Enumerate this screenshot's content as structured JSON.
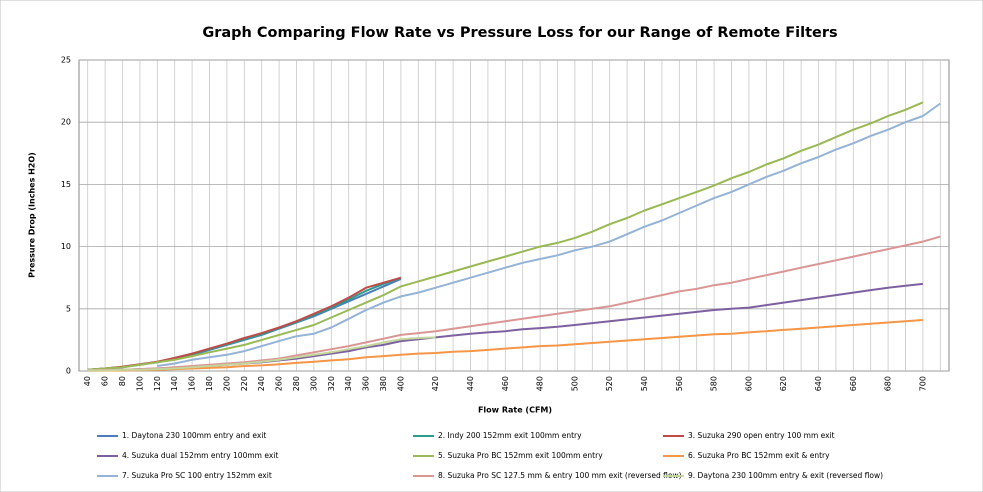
{
  "chart_data": {
    "type": "line",
    "title": "Graph Comparing Flow Rate vs Pressure Loss for our Range of Remote Filters",
    "x_label": "Flow Rate (CFM)",
    "y_label": "Pressure Drop (Inches H2O)",
    "categories": [
      "40",
      "60",
      "80",
      "100",
      "120",
      "140",
      "160",
      "180",
      "200",
      "220",
      "240",
      "260",
      "280",
      "300",
      "320",
      "340",
      "360",
      "380",
      "400",
      null,
      "420",
      null,
      "440",
      null,
      "460",
      null,
      "480",
      null,
      "500",
      null,
      "520",
      null,
      "540",
      null,
      "560",
      null,
      "580",
      null,
      "600",
      null,
      "620",
      null,
      "640",
      null,
      "660",
      null,
      "680",
      null,
      "700",
      null
    ],
    "ylim": [
      0,
      25
    ],
    "yticks": [
      0,
      5,
      10,
      15,
      20,
      25
    ],
    "grid": true,
    "legend": "bottom",
    "series": [
      {
        "name": "1. Daytona 230 100mm entry and exit",
        "color": "#4a7ebb",
        "values": [
          0.1,
          0.2,
          0.3,
          0.5,
          0.7,
          1.0,
          1.3,
          1.7,
          2.1,
          2.5,
          2.9,
          3.4,
          3.9,
          4.4,
          5.0,
          5.6,
          6.2,
          6.8,
          7.4,
          null,
          null,
          null,
          null,
          null,
          null,
          null,
          null,
          null,
          null,
          null,
          null,
          null,
          null,
          null,
          null,
          null,
          null,
          null,
          null,
          null,
          null,
          null,
          null,
          null,
          null,
          null,
          null,
          null,
          null,
          null
        ]
      },
      {
        "name": "2. Indy 200 152mm exit 100mm entry",
        "color": "#2c9c8c",
        "values": [
          0.1,
          0.2,
          0.32,
          0.52,
          0.72,
          1.02,
          1.35,
          1.75,
          2.15,
          2.55,
          2.95,
          3.45,
          3.95,
          4.5,
          5.1,
          5.75,
          6.45,
          7.0,
          7.5,
          null,
          null,
          null,
          null,
          null,
          null,
          null,
          null,
          null,
          null,
          null,
          null,
          null,
          null,
          null,
          null,
          null,
          null,
          null,
          null,
          null,
          null,
          null,
          null,
          null,
          null,
          null,
          null,
          null,
          null,
          null
        ]
      },
      {
        "name": "3. Suzuka 290 open entry 100 mm exit",
        "color": "#be4b48",
        "values": [
          0.1,
          0.2,
          0.35,
          0.55,
          0.75,
          1.05,
          1.4,
          1.8,
          2.2,
          2.65,
          3.05,
          3.5,
          4.0,
          4.6,
          5.2,
          5.9,
          6.7,
          7.1,
          7.5,
          null,
          null,
          null,
          null,
          null,
          null,
          null,
          null,
          null,
          null,
          null,
          null,
          null,
          null,
          null,
          null,
          null,
          null,
          null,
          null,
          null,
          null,
          null,
          null,
          null,
          null,
          null,
          null,
          null,
          null,
          null
        ]
      },
      {
        "name": "4. Suzuka dual 152mm entry 100mm exit",
        "color": "#7d60a0",
        "values": [
          0.05,
          0.1,
          0.1,
          0.15,
          0.2,
          0.25,
          0.3,
          0.4,
          0.5,
          0.6,
          0.7,
          0.85,
          1.0,
          1.2,
          1.4,
          1.6,
          1.9,
          2.1,
          2.4,
          2.55,
          2.7,
          2.85,
          3.0,
          3.1,
          3.2,
          3.35,
          3.45,
          3.55,
          3.7,
          3.85,
          4.0,
          4.15,
          4.3,
          4.45,
          4.6,
          4.75,
          4.9,
          5.0,
          5.1,
          5.3,
          5.5,
          5.7,
          5.9,
          6.1,
          6.3,
          6.5,
          6.7,
          6.85,
          7.0,
          null
        ]
      },
      {
        "name": "5. Suzuka Pro BC 152mm exit 100mm entry",
        "color": "#98b954",
        "values": [
          0.1,
          0.2,
          0.3,
          0.5,
          0.7,
          0.9,
          1.2,
          1.5,
          1.8,
          2.1,
          2.5,
          2.9,
          3.3,
          3.7,
          4.3,
          4.9,
          5.5,
          6.1,
          6.8,
          7.2,
          7.6,
          8.0,
          8.4,
          8.8,
          9.2,
          9.6,
          10.0,
          10.3,
          10.7,
          11.2,
          11.8,
          12.3,
          12.9,
          13.4,
          13.9,
          14.4,
          14.9,
          15.5,
          16.0,
          16.6,
          17.1,
          17.7,
          18.2,
          18.8,
          19.4,
          19.9,
          20.5,
          21.0,
          21.6,
          null
        ]
      },
      {
        "name": "6. Suzuka Pro BC 152mm exit & entry",
        "color": "#f79646",
        "values": [
          0.02,
          0.03,
          0.05,
          0.07,
          0.1,
          0.15,
          0.2,
          0.25,
          0.3,
          0.4,
          0.45,
          0.55,
          0.65,
          0.75,
          0.85,
          0.95,
          1.1,
          1.2,
          1.3,
          1.4,
          1.45,
          1.55,
          1.6,
          1.7,
          1.8,
          1.9,
          2.0,
          2.05,
          2.15,
          2.25,
          2.35,
          2.45,
          2.55,
          2.65,
          2.75,
          2.85,
          2.95,
          3.0,
          3.1,
          3.2,
          3.3,
          3.4,
          3.5,
          3.6,
          3.7,
          3.8,
          3.9,
          4.0,
          4.1,
          null
        ]
      },
      {
        "name": "7. Suzuka Pro SC 100 entry 152mm exit",
        "color": "#95b3d7",
        "values": [
          null,
          null,
          null,
          null,
          0.4,
          0.6,
          0.9,
          1.1,
          1.3,
          1.6,
          2.0,
          2.4,
          2.8,
          3.0,
          3.5,
          4.2,
          4.9,
          5.5,
          6.0,
          6.3,
          6.7,
          7.1,
          7.5,
          7.9,
          8.3,
          8.7,
          9.0,
          9.3,
          9.7,
          10.0,
          10.4,
          11.0,
          11.6,
          12.1,
          12.7,
          13.3,
          13.9,
          14.4,
          15.0,
          15.6,
          16.1,
          16.7,
          17.2,
          17.8,
          18.3,
          18.9,
          19.4,
          20.0,
          20.5,
          21.5
        ]
      },
      {
        "name": "8. Suzuka Pro SC 127.5 mm & entry 100 mm exit (reversed flow)",
        "color": "#d99694",
        "values": [
          0.05,
          0.1,
          0.1,
          0.15,
          0.2,
          0.3,
          0.4,
          0.5,
          0.6,
          0.7,
          0.85,
          1.0,
          1.25,
          1.5,
          1.75,
          2.0,
          2.3,
          2.6,
          2.9,
          3.05,
          3.2,
          3.4,
          3.6,
          3.8,
          4.0,
          4.2,
          4.4,
          4.6,
          4.8,
          5.0,
          5.2,
          5.5,
          5.8,
          6.1,
          6.4,
          6.6,
          6.9,
          7.1,
          7.4,
          7.7,
          8.0,
          8.3,
          8.6,
          8.9,
          9.2,
          9.5,
          9.8,
          10.1,
          10.4,
          10.8
        ]
      },
      {
        "name": "9. Daytona 230 100mm entry & exit (reversed flow)",
        "color": "#c3d69b",
        "values": [
          0.05,
          0.05,
          0.1,
          0.1,
          0.15,
          0.2,
          0.3,
          0.4,
          0.5,
          0.6,
          0.75,
          0.9,
          1.1,
          1.3,
          1.5,
          1.75,
          2.0,
          2.3,
          2.55,
          2.65,
          2.7,
          null,
          null,
          null,
          null,
          null,
          null,
          null,
          null,
          null,
          null,
          null,
          null,
          null,
          null,
          null,
          null,
          null,
          null,
          null,
          null,
          null,
          null,
          null,
          null,
          null,
          null,
          null,
          null,
          null
        ]
      }
    ]
  }
}
